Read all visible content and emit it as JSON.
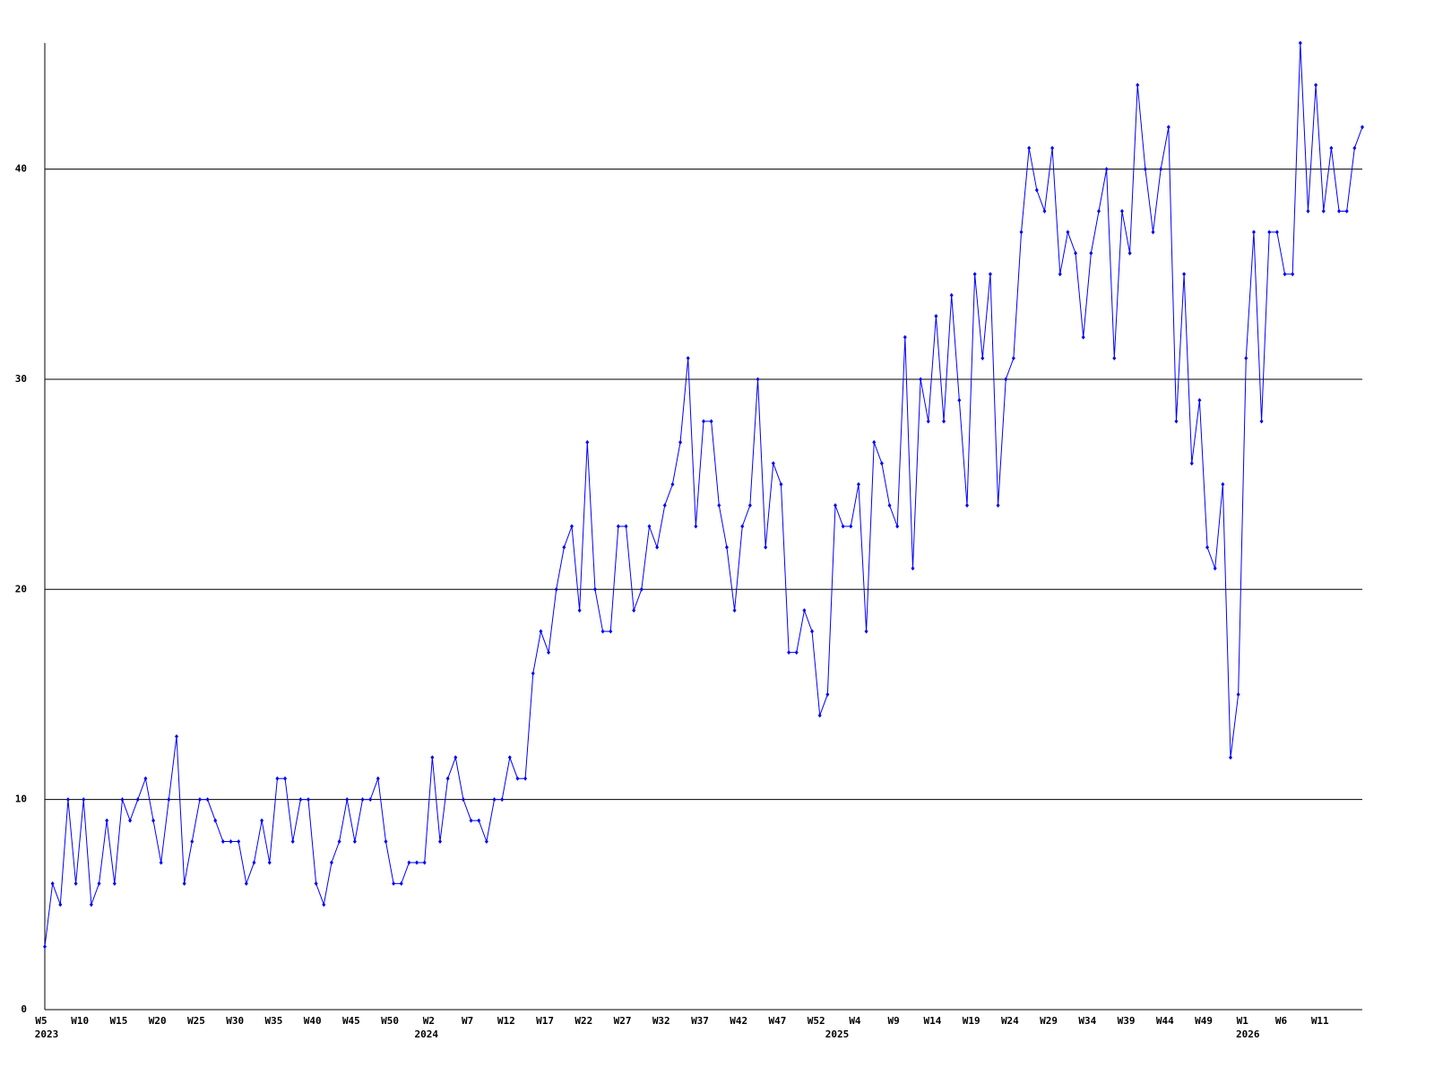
{
  "chart_data": {
    "type": "line",
    "color": "#0000ff",
    "grid": true,
    "ylim": [
      0,
      46
    ],
    "yticks": [
      0,
      10,
      20,
      30,
      40
    ],
    "categories": [
      "W5",
      null,
      null,
      null,
      null,
      "W10",
      null,
      null,
      null,
      null,
      "W15",
      null,
      null,
      null,
      null,
      "W20",
      null,
      null,
      null,
      null,
      "W25",
      null,
      null,
      null,
      null,
      "W30",
      null,
      null,
      null,
      null,
      "W35",
      null,
      null,
      null,
      null,
      "W40",
      null,
      null,
      null,
      null,
      "W45",
      null,
      null,
      null,
      null,
      "W50",
      null,
      null,
      null,
      null,
      "W2",
      null,
      null,
      null,
      null,
      "W7",
      null,
      null,
      null,
      null,
      "W12",
      null,
      null,
      null,
      null,
      "W17",
      null,
      null,
      null,
      null,
      "W22",
      null,
      null,
      null,
      null,
      "W27",
      null,
      null,
      null,
      null,
      "W32",
      null,
      null,
      null,
      null,
      "W37",
      null,
      null,
      null,
      null,
      "W42",
      null,
      null,
      null,
      null,
      "W47",
      null,
      null,
      null,
      null,
      "W52",
      null,
      null,
      null,
      null,
      "W4",
      null,
      null,
      null,
      null,
      "W9",
      null,
      null,
      null,
      null,
      "W14",
      null,
      null,
      null,
      null,
      "W19",
      null,
      null,
      null,
      null,
      "W24",
      null,
      null,
      null,
      null,
      "W29",
      null,
      null,
      null,
      null,
      "W34",
      null,
      null,
      null,
      null,
      "W39",
      null,
      null,
      null,
      null,
      "W44",
      null,
      null,
      null,
      null,
      "W49",
      null,
      null,
      null,
      null,
      "W1",
      null,
      null,
      null,
      null,
      "W6",
      null,
      null,
      null,
      null,
      "W11",
      null,
      null,
      null,
      null,
      null
    ],
    "year_labels": [
      "2023",
      null,
      null,
      null,
      null,
      null,
      null,
      null,
      null,
      null,
      null,
      null,
      null,
      null,
      null,
      null,
      null,
      null,
      null,
      null,
      null,
      null,
      null,
      null,
      null,
      null,
      null,
      null,
      null,
      null,
      null,
      null,
      null,
      null,
      null,
      null,
      null,
      null,
      null,
      null,
      null,
      null,
      null,
      null,
      null,
      null,
      null,
      null,
      null,
      "2024",
      null,
      null,
      null,
      null,
      null,
      null,
      null,
      null,
      null,
      null,
      null,
      null,
      null,
      null,
      null,
      null,
      null,
      null,
      null,
      null,
      null,
      null,
      null,
      null,
      null,
      null,
      null,
      null,
      null,
      null,
      null,
      null,
      null,
      null,
      null,
      null,
      null,
      null,
      null,
      null,
      null,
      null,
      null,
      null,
      null,
      null,
      null,
      null,
      null,
      null,
      null,
      null,
      "2025",
      null,
      null,
      null,
      null,
      null,
      null,
      null,
      null,
      null,
      null,
      null,
      null,
      null,
      null,
      null,
      null,
      null,
      null,
      null,
      null,
      null,
      null,
      null,
      null,
      null,
      null,
      null,
      null,
      null,
      null,
      null,
      null,
      null,
      null,
      null,
      null,
      null,
      null,
      null,
      null,
      null,
      null,
      null,
      null,
      null,
      null,
      null,
      null,
      null,
      null,
      null,
      null,
      "2026",
      null,
      null,
      null,
      null,
      null,
      null,
      null,
      null,
      null,
      null,
      null,
      null,
      null,
      null,
      null
    ],
    "values": [
      3,
      6,
      5,
      10,
      6,
      10,
      5,
      6,
      9,
      6,
      10,
      9,
      10,
      11,
      9,
      7,
      10,
      13,
      6,
      8,
      10,
      10,
      9,
      8,
      8,
      8,
      6,
      7,
      9,
      7,
      11,
      11,
      8,
      10,
      10,
      6,
      5,
      7,
      8,
      10,
      8,
      10,
      10,
      11,
      8,
      6,
      6,
      7,
      7,
      7,
      12,
      8,
      11,
      12,
      10,
      9,
      9,
      8,
      10,
      10,
      12,
      11,
      11,
      16,
      18,
      17,
      20,
      22,
      23,
      19,
      27,
      20,
      18,
      18,
      23,
      23,
      19,
      20,
      23,
      22,
      24,
      25,
      27,
      31,
      23,
      28,
      28,
      24,
      22,
      19,
      23,
      24,
      30,
      22,
      26,
      25,
      17,
      17,
      19,
      18,
      14,
      15,
      24,
      23,
      23,
      25,
      18,
      27,
      26,
      24,
      23,
      32,
      21,
      30,
      28,
      33,
      28,
      34,
      29,
      24,
      35,
      31,
      35,
      24,
      30,
      31,
      37,
      41,
      39,
      38,
      41,
      35,
      37,
      36,
      32,
      36,
      38,
      40,
      31,
      38,
      36,
      44,
      40,
      37,
      40,
      42,
      28,
      35,
      26,
      29,
      22,
      21,
      25,
      12,
      15,
      31,
      37,
      28,
      37,
      37,
      35,
      35,
      46,
      38,
      44,
      38,
      41,
      38,
      38,
      41,
      42
    ]
  }
}
